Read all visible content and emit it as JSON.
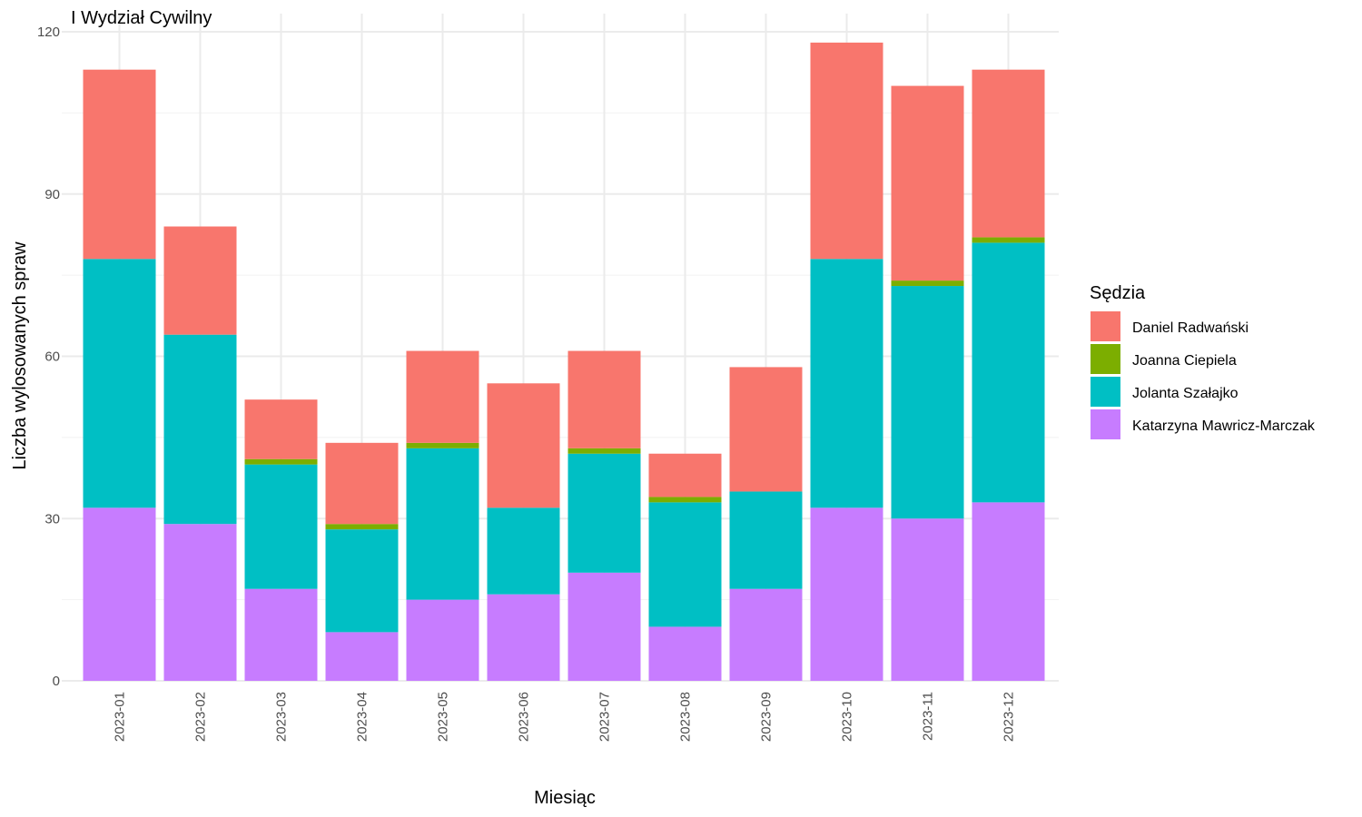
{
  "chart_data": {
    "type": "bar",
    "stacked": true,
    "title": "I Wydział Cywilny",
    "xlabel": "Miesiąc",
    "ylabel": "Liczba wylosowanych spraw",
    "ylim": [
      0,
      120
    ],
    "yticks": [
      0,
      30,
      60,
      90,
      120
    ],
    "grid": true,
    "legend_position": "right",
    "legend_title": "Sędzia",
    "categories": [
      "2023-01",
      "2023-02",
      "2023-03",
      "2023-04",
      "2023-05",
      "2023-06",
      "2023-07",
      "2023-08",
      "2023-09",
      "2023-10",
      "2023-11",
      "2023-12"
    ],
    "series": [
      {
        "name": "Katarzyna Mawricz-Marczak",
        "color": "#C77CFF",
        "values": [
          32,
          29,
          17,
          9,
          15,
          16,
          20,
          10,
          17,
          32,
          30,
          33
        ]
      },
      {
        "name": "Jolanta Szałajko",
        "color": "#00BFC4",
        "values": [
          46,
          35,
          23,
          19,
          28,
          16,
          22,
          23,
          18,
          46,
          43,
          48
        ]
      },
      {
        "name": "Joanna Ciepiela",
        "color": "#7CAE00",
        "values": [
          0,
          0,
          1,
          1,
          1,
          0,
          1,
          1,
          0,
          0,
          1,
          1
        ]
      },
      {
        "name": "Daniel Radwański",
        "color": "#F8766D",
        "values": [
          35,
          20,
          11,
          15,
          17,
          23,
          18,
          8,
          23,
          40,
          36,
          31
        ]
      }
    ],
    "legend_order": [
      "Daniel Radwański",
      "Joanna Ciepiela",
      "Jolanta Szałajko",
      "Katarzyna Mawricz-Marczak"
    ]
  }
}
